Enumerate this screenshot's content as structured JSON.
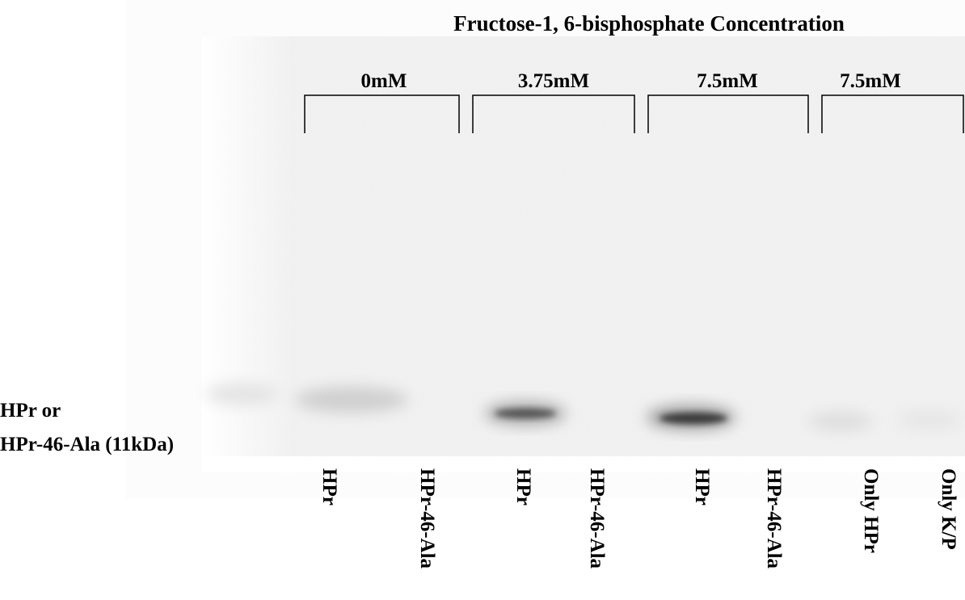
{
  "figure": {
    "title": "Fructose-1, 6-bisphosphate Concentration",
    "groups": [
      "0mM",
      "3.75mM",
      "7.5mM",
      "7.5mM"
    ],
    "lanes": [
      "HPr",
      "HPr-46-Ala",
      "HPr",
      "HPr-46-Ala",
      "HPr",
      "HPr-46-Ala",
      "Only HPr",
      "Only K/P"
    ],
    "band_label": [
      "HPr or",
      "HPr-46-Ala (11kDa)"
    ]
  }
}
